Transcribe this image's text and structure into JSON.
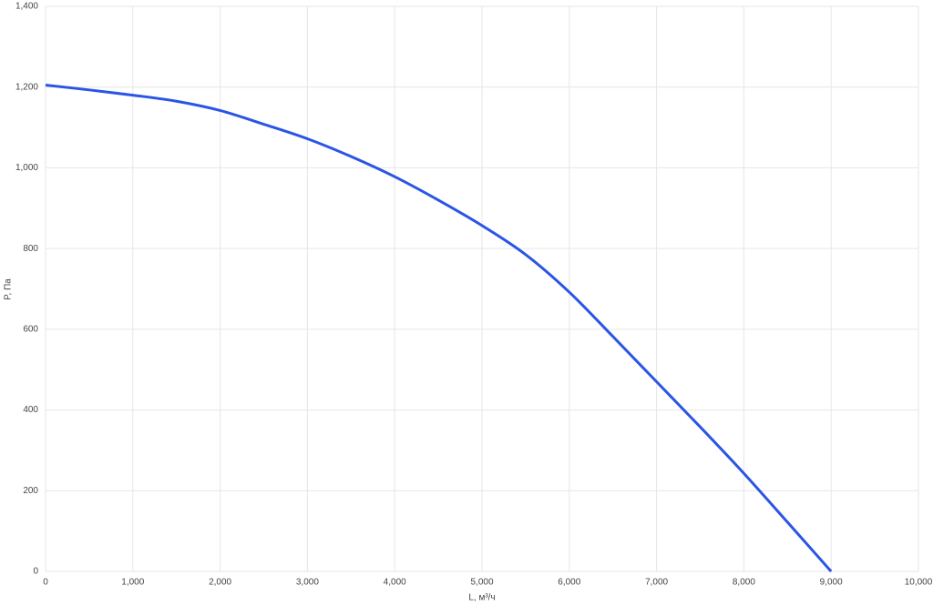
{
  "chart_data": {
    "type": "line",
    "x_label": "L, м³/ч",
    "y_label": "P, Па",
    "x": [
      0,
      500,
      1000,
      1500,
      2000,
      2500,
      3000,
      3500,
      4000,
      4500,
      5000,
      5500,
      6000,
      6500,
      7000,
      7500,
      8000,
      8500,
      9000
    ],
    "values": [
      1205,
      1193,
      1180,
      1165,
      1142,
      1108,
      1072,
      1028,
      978,
      920,
      857,
      785,
      692,
      582,
      470,
      358,
      243,
      122,
      0
    ],
    "color": "#2a55e5",
    "xlim": [
      0,
      10000
    ],
    "xticks": [
      0,
      {
        "value": 1000,
        "label": "1,000"
      },
      {
        "value": 2000,
        "label": "2,000"
      },
      {
        "value": 3000,
        "label": "3,000"
      },
      {
        "value": 4000,
        "label": "4,000"
      },
      {
        "value": 5000,
        "label": "5,000"
      },
      {
        "value": 6000,
        "label": "6,000"
      },
      {
        "value": 7000,
        "label": "7,000"
      },
      {
        "value": 8000,
        "label": "8,000"
      },
      {
        "value": 9000,
        "label": "9,000"
      },
      {
        "value": 10000,
        "label": "10,000"
      }
    ],
    "ylim": [
      0,
      1400
    ],
    "yticks": [
      0,
      200,
      400,
      600,
      800,
      {
        "value": 1000,
        "label": "1,000"
      },
      {
        "value": 1200,
        "label": "1,200"
      },
      {
        "value": 1400,
        "label": "1,400"
      }
    ],
    "grid": true
  }
}
